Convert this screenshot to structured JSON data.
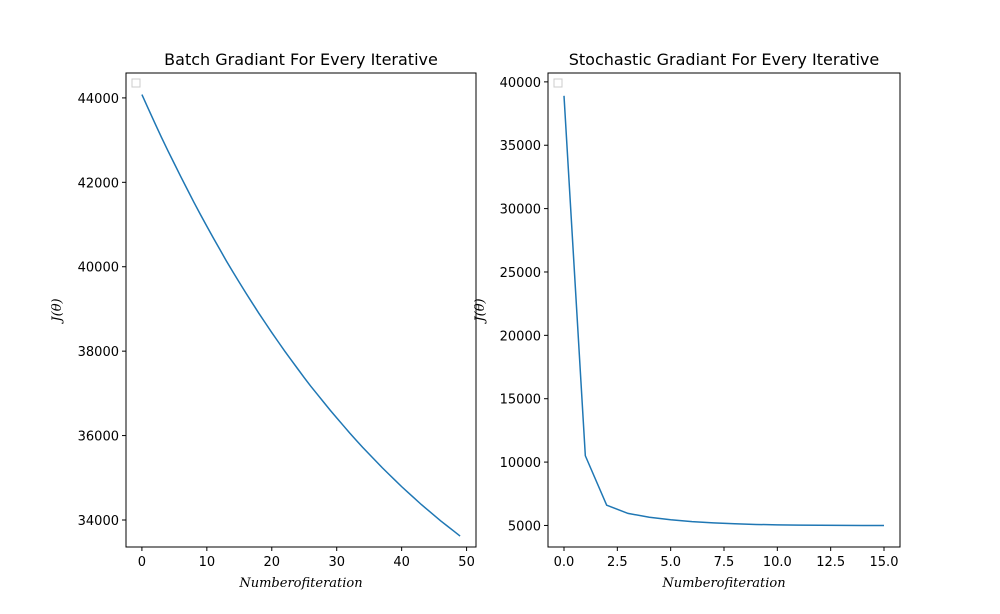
{
  "chart_data": [
    {
      "type": "line",
      "title": "Batch Gradiant For Every Iterative",
      "xlabel": "Numberofiteration",
      "ylabel": "J(θ)",
      "xlim": [
        -2.45,
        51.45
      ],
      "ylim": [
        33360,
        44590
      ],
      "xticks": [
        0,
        10,
        20,
        30,
        40,
        50
      ],
      "yticks": [
        34000,
        36000,
        38000,
        40000,
        42000,
        44000
      ],
      "grid": false,
      "legend": "upper-left (empty)",
      "color": "#1f77b4",
      "series": [
        {
          "x": [
            0,
            1,
            2,
            3,
            4,
            5,
            6,
            7,
            8,
            9,
            10,
            11,
            12,
            13,
            14,
            15,
            16,
            17,
            18,
            19,
            20,
            21,
            22,
            23,
            24,
            25,
            26,
            27,
            28,
            29,
            30,
            31,
            32,
            33,
            34,
            35,
            36,
            37,
            38,
            39,
            40,
            41,
            42,
            43,
            44,
            45,
            46,
            47,
            48,
            49
          ],
          "values": [
            44080,
            43740,
            43400,
            43070,
            42750,
            42440,
            42130,
            41830,
            41530,
            41240,
            40960,
            40680,
            40410,
            40140,
            39880,
            39630,
            39380,
            39140,
            38900,
            38670,
            38440,
            38220,
            38000,
            37790,
            37580,
            37370,
            37170,
            36980,
            36790,
            36600,
            36420,
            36240,
            36060,
            35890,
            35720,
            35560,
            35400,
            35240,
            35090,
            34940,
            34790,
            34650,
            34510,
            34370,
            34240,
            34110,
            33980,
            33860,
            33740,
            33620
          ]
        }
      ]
    },
    {
      "type": "line",
      "title": "Stochastic Gradiant For Every Iterative",
      "xlabel": "Numberofiteration",
      "ylabel": "J(θ)",
      "xlim": [
        -0.75,
        15.75
      ],
      "ylim": [
        3300,
        40700
      ],
      "xticks": [
        0.0,
        2.5,
        5.0,
        7.5,
        10.0,
        12.5,
        15.0
      ],
      "xtick_labels": [
        "0.0",
        "2.5",
        "5.0",
        "7.5",
        "10.0",
        "12.5",
        "15.0"
      ],
      "yticks": [
        5000,
        10000,
        15000,
        20000,
        25000,
        30000,
        35000,
        40000
      ],
      "grid": false,
      "legend": "upper-left (empty)",
      "color": "#1f77b4",
      "series": [
        {
          "x": [
            0,
            1,
            2,
            3,
            4,
            5,
            6,
            7,
            8,
            9,
            10,
            11,
            12,
            13,
            14,
            15
          ],
          "values": [
            38900,
            10500,
            6600,
            5950,
            5650,
            5450,
            5300,
            5200,
            5130,
            5080,
            5050,
            5030,
            5015,
            5005,
            5000,
            5000
          ]
        }
      ]
    }
  ]
}
